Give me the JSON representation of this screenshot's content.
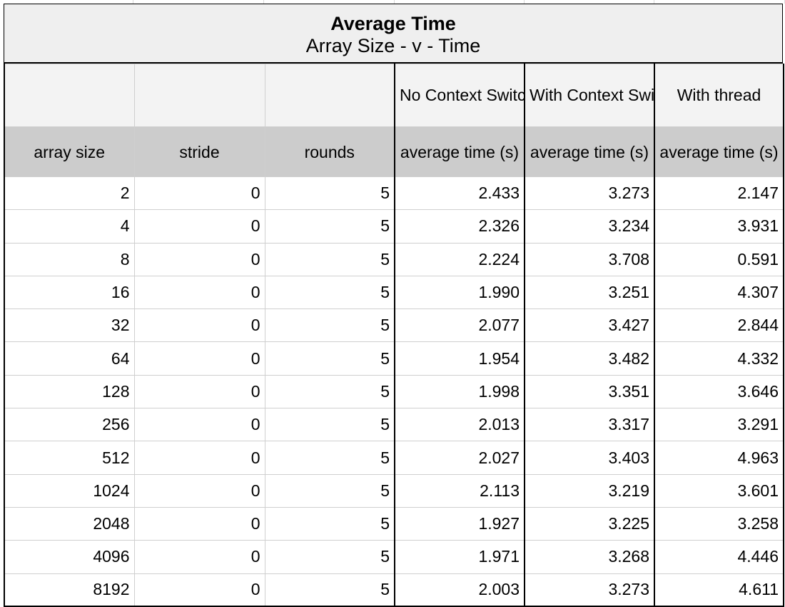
{
  "title": "Average Time",
  "subtitle": "Array Size - v - Time",
  "group_headers": [
    "",
    "",
    "",
    "No Context Switch",
    "With Context Switch",
    "With thread"
  ],
  "column_headers": [
    "array size",
    "stride",
    "rounds",
    "average time (s)",
    "average time (s)",
    "average time (s)"
  ],
  "rows": [
    [
      "2",
      "0",
      "5",
      "2.433",
      "3.273",
      "2.147"
    ],
    [
      "4",
      "0",
      "5",
      "2.326",
      "3.234",
      "3.931"
    ],
    [
      "8",
      "0",
      "5",
      "2.224",
      "3.708",
      "0.591"
    ],
    [
      "16",
      "0",
      "5",
      "1.990",
      "3.251",
      "4.307"
    ],
    [
      "32",
      "0",
      "5",
      "2.077",
      "3.427",
      "2.844"
    ],
    [
      "64",
      "0",
      "5",
      "1.954",
      "3.482",
      "4.332"
    ],
    [
      "128",
      "0",
      "5",
      "1.998",
      "3.351",
      "3.646"
    ],
    [
      "256",
      "0",
      "5",
      "2.013",
      "3.317",
      "3.291"
    ],
    [
      "512",
      "0",
      "5",
      "2.027",
      "3.403",
      "4.963"
    ],
    [
      "1024",
      "0",
      "5",
      "2.113",
      "3.219",
      "3.601"
    ],
    [
      "2048",
      "0",
      "5",
      "1.927",
      "3.225",
      "3.258"
    ],
    [
      "4096",
      "0",
      "5",
      "1.971",
      "3.268",
      "4.446"
    ],
    [
      "8192",
      "0",
      "5",
      "2.003",
      "3.273",
      "4.611"
    ]
  ]
}
